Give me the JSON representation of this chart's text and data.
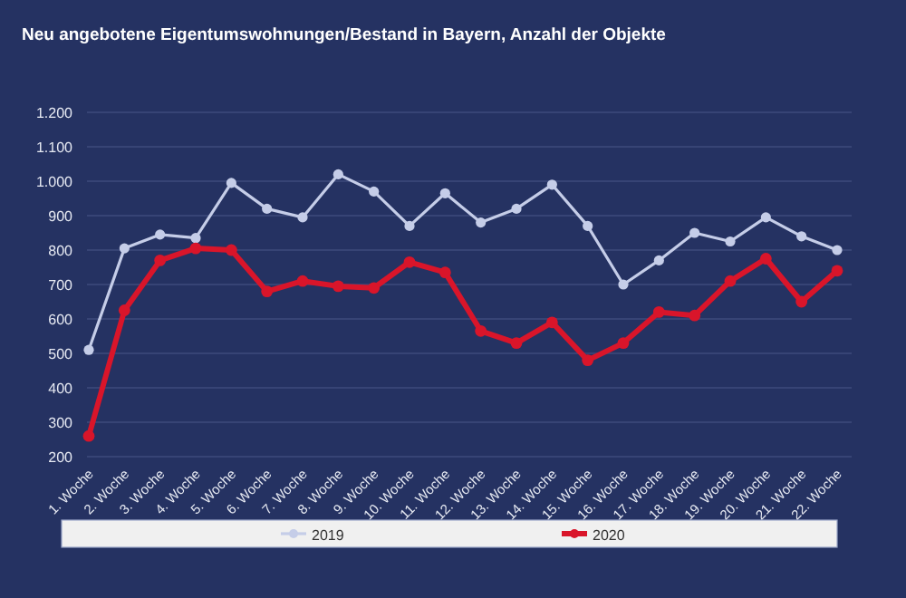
{
  "chart_data": {
    "type": "line",
    "title": "Neu angebotene Eigentumswohnungen/Bestand in Bayern,  Anzahl der Objekte",
    "categories": [
      "1. Woche",
      "2. Woche",
      "3. Woche",
      "4. Woche",
      "5. Woche",
      "6. Woche",
      "7. Woche",
      "8. Woche",
      "9. Woche",
      "10. Woche",
      "11. Woche",
      "12. Woche",
      "13. Woche",
      "14. Woche",
      "15. Woche",
      "16. Woche",
      "17. Woche",
      "18. Woche",
      "19. Woche",
      "20. Woche",
      "21. Woche",
      "22. Woche"
    ],
    "series": [
      {
        "name": "2019",
        "color": "#c5cde8",
        "values": [
          510,
          805,
          845,
          835,
          995,
          920,
          895,
          1020,
          970,
          870,
          965,
          880,
          920,
          990,
          870,
          700,
          770,
          850,
          825,
          895,
          840,
          800
        ]
      },
      {
        "name": "2020",
        "color": "#d9152a",
        "values": [
          260,
          625,
          770,
          805,
          800,
          680,
          710,
          695,
          690,
          765,
          735,
          565,
          530,
          590,
          480,
          530,
          620,
          610,
          710,
          775,
          650,
          740
        ]
      }
    ],
    "ylim": [
      200,
      1200
    ],
    "yticks": [
      {
        "value": 200,
        "label": "200"
      },
      {
        "value": 300,
        "label": "300"
      },
      {
        "value": 400,
        "label": "400"
      },
      {
        "value": 500,
        "label": "500"
      },
      {
        "value": 600,
        "label": "600"
      },
      {
        "value": 700,
        "label": "700"
      },
      {
        "value": 800,
        "label": "800"
      },
      {
        "value": 900,
        "label": "900"
      },
      {
        "value": 1000,
        "label": "1.000"
      },
      {
        "value": 1100,
        "label": "1.100"
      },
      {
        "value": 1200,
        "label": "1.200"
      }
    ],
    "grid": "y",
    "legend": "bottom",
    "marker": "circle",
    "line_style": "solid"
  }
}
